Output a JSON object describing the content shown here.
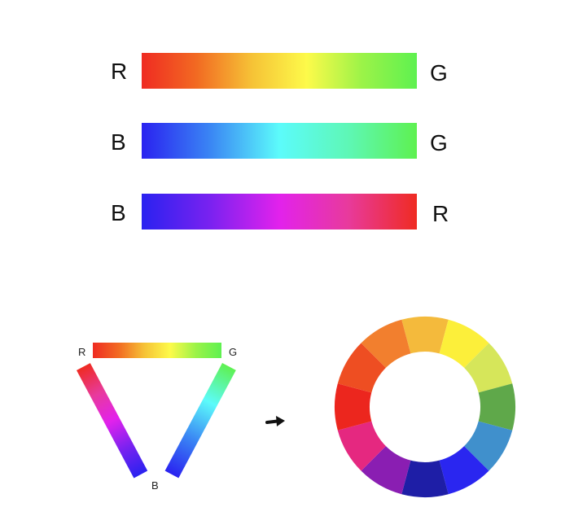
{
  "labels": {
    "row1_left": "R",
    "row1_right": "G",
    "row2_left": "B",
    "row2_right": "G",
    "row3_left": "B",
    "row3_right": "R",
    "tri_red": "R",
    "tri_green": "G",
    "tri_blue": "B"
  },
  "gradients": {
    "red_green": [
      "#ef2b22",
      "#f26a22",
      "#f6c236",
      "#fdfa4a",
      "#9cf348",
      "#5ef150"
    ],
    "blue_green": [
      "#2a22f0",
      "#3a86f4",
      "#5cfbfb",
      "#5ef7b6",
      "#5ef150"
    ],
    "blue_red": [
      "#2a22f0",
      "#7a22f0",
      "#e222ec",
      "#e83a9c",
      "#ef2b22"
    ]
  },
  "wheel": {
    "segments": [
      "#f4ba3c",
      "#fcef3a",
      "#d6e65a",
      "#5fa84a",
      "#4090cc",
      "#2a26f0",
      "#1e1ea6",
      "#8a1eb2",
      "#e52880",
      "#ec261e",
      "#ee4e22",
      "#f27f2e"
    ]
  },
  "arrow": {
    "icon": "right-arrow-icon"
  }
}
